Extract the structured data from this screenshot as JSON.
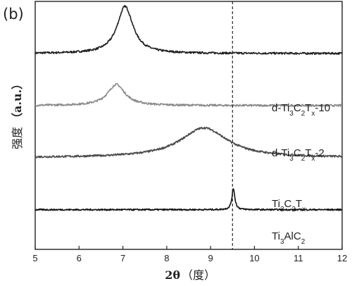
{
  "panel_label": "(b)",
  "chart_data": {
    "type": "line",
    "xlabel": {
      "main": "2θ",
      "unit": "（度）"
    },
    "ylabel": {
      "main": "强度",
      "unit": "（a.u.）"
    },
    "xlim": [
      5,
      12
    ],
    "xticks": [
      5,
      6,
      7,
      8,
      9,
      10,
      11,
      12
    ],
    "y_ticks_shown": false,
    "reference_line": {
      "x": 9.5,
      "style": "dashed"
    },
    "series": [
      {
        "label": {
          "base": "d-Ti",
          "sub1": "3",
          "mid": "C",
          "sub2": "2",
          "mid2": "T",
          "sub3": "x",
          "suffix": "-10"
        },
        "color": "#1f1f1f",
        "offset": 0.79,
        "baseline": 0.0,
        "noise": 0.004,
        "peaks": [
          {
            "x": 7.05,
            "height": 0.19,
            "width": 0.22
          }
        ]
      },
      {
        "label": {
          "base": "d-Ti",
          "sub1": "3",
          "mid": "C",
          "sub2": "2",
          "mid2": "T",
          "sub3": "x",
          "suffix": "-2"
        },
        "color": "#8a8a8a",
        "offset": 0.58,
        "baseline": 0.0,
        "noise": 0.004,
        "peaks": [
          {
            "x": 6.85,
            "height": 0.085,
            "width": 0.24
          }
        ]
      },
      {
        "label": {
          "base": "Ti",
          "sub1": "3",
          "mid": "C",
          "sub2": "2",
          "mid2": "T",
          "sub3": "x",
          "suffix": ""
        },
        "color": "#4a4a4a",
        "offset": 0.37,
        "baseline": 0.0,
        "noise": 0.004,
        "peaks": [
          {
            "x": 8.85,
            "height": 0.12,
            "width": 0.65
          }
        ]
      },
      {
        "label": {
          "base": "Ti",
          "sub1": "3",
          "mid": "AlC",
          "sub2": "2",
          "mid2": "",
          "sub3": "",
          "suffix": ""
        },
        "color": "#111111",
        "offset": 0.16,
        "baseline": 0.0,
        "noise": 0.003,
        "peaks": [
          {
            "x": 9.52,
            "height": 0.085,
            "width": 0.04
          }
        ]
      }
    ]
  }
}
